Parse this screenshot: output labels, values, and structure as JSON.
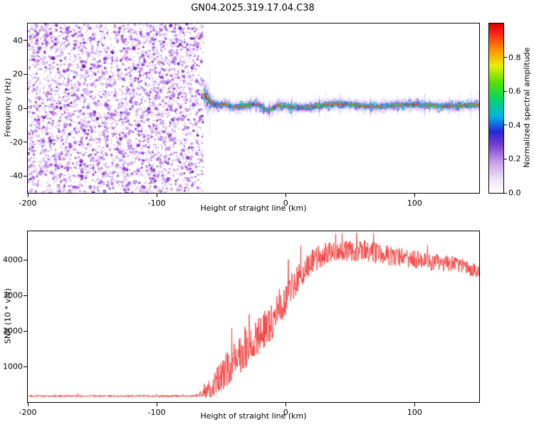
{
  "title": "GN04.2025.319.17.04.C38",
  "accent_colors": {
    "axis": "#000000",
    "snr_line": "#f23b3b",
    "noise_purple": "#8a3fd1"
  },
  "chart_data": [
    {
      "type": "heatmap",
      "name": "spectrogram",
      "xlabel": "Height of straight line (km)",
      "ylabel": "Frequency (Hz)",
      "xlim": [
        -200,
        150
      ],
      "ylim": [
        -50,
        50
      ],
      "x_ticks": [
        -200,
        -100,
        0,
        100
      ],
      "y_ticks": [
        -40,
        -20,
        0,
        20,
        40
      ],
      "grid": false,
      "noise_region": {
        "x_start": -200,
        "x_end": -64,
        "description": "dense random purple speckle noise over full frequency range, amplitude 0-0.3"
      },
      "signal_band": {
        "x_start": -64,
        "x_end": 150,
        "center_frequency_hz": 1.6,
        "entry_excursion_hz": 8,
        "dip": {
          "x": -14,
          "depth_hz": -4.2
        },
        "core_amplitude": 0.95,
        "halo_amplitude": 0.15,
        "description": "narrow high-amplitude band near 0 Hz: red core, green/cyan/blue rim, purple halo, meandering between -65 and 0 km then nearly flat"
      },
      "colorbar": {
        "label": "Normalized spectral amplitude",
        "range": [
          0,
          1
        ],
        "ticks": [
          0,
          0.2,
          0.4,
          0.6,
          0.8
        ],
        "tick_labels": [
          "0.0",
          "0.2",
          "0.4",
          "0.6",
          "0.8"
        ],
        "stops": [
          {
            "t": 0.0,
            "color": "#ffffff"
          },
          {
            "t": 0.08,
            "color": "#efe4f8"
          },
          {
            "t": 0.18,
            "color": "#c9a0e8"
          },
          {
            "t": 0.28,
            "color": "#7a3fd1"
          },
          {
            "t": 0.36,
            "color": "#2727d8"
          },
          {
            "t": 0.45,
            "color": "#00b3e6"
          },
          {
            "t": 0.55,
            "color": "#00d96a"
          },
          {
            "t": 0.65,
            "color": "#55e000"
          },
          {
            "t": 0.75,
            "color": "#e8f000"
          },
          {
            "t": 0.85,
            "color": "#ff8c00"
          },
          {
            "t": 0.95,
            "color": "#ff1a1a"
          },
          {
            "t": 1.0,
            "color": "#d40000"
          }
        ]
      }
    },
    {
      "type": "line",
      "name": "snr-profile",
      "xlabel": "Height of straight line (km)",
      "ylabel": "SNR (10 * v/v)",
      "xlim": [
        -200,
        150
      ],
      "ylim": [
        0,
        4800
      ],
      "x_ticks": [
        -200,
        -100,
        0,
        100
      ],
      "y_ticks": [
        1000,
        2000,
        3000,
        4000
      ],
      "grid": false,
      "line_color": "#f23b3b",
      "envelope_format": [
        "x_km",
        "mean_snr",
        "noise_amplitude"
      ],
      "envelope": [
        [
          -200,
          170,
          60
        ],
        [
          -70,
          170,
          60
        ],
        [
          -63,
          250,
          250
        ],
        [
          -56,
          500,
          700
        ],
        [
          -48,
          800,
          900
        ],
        [
          -40,
          1200,
          1100
        ],
        [
          -30,
          1600,
          1200
        ],
        [
          -20,
          1900,
          1100
        ],
        [
          -10,
          2300,
          1000
        ],
        [
          0,
          2900,
          900
        ],
        [
          10,
          3500,
          800
        ],
        [
          20,
          3950,
          700
        ],
        [
          35,
          4250,
          600
        ],
        [
          60,
          4250,
          600
        ],
        [
          85,
          4100,
          550
        ],
        [
          110,
          3950,
          500
        ],
        [
          135,
          3850,
          450
        ],
        [
          150,
          3650,
          420
        ]
      ]
    }
  ]
}
